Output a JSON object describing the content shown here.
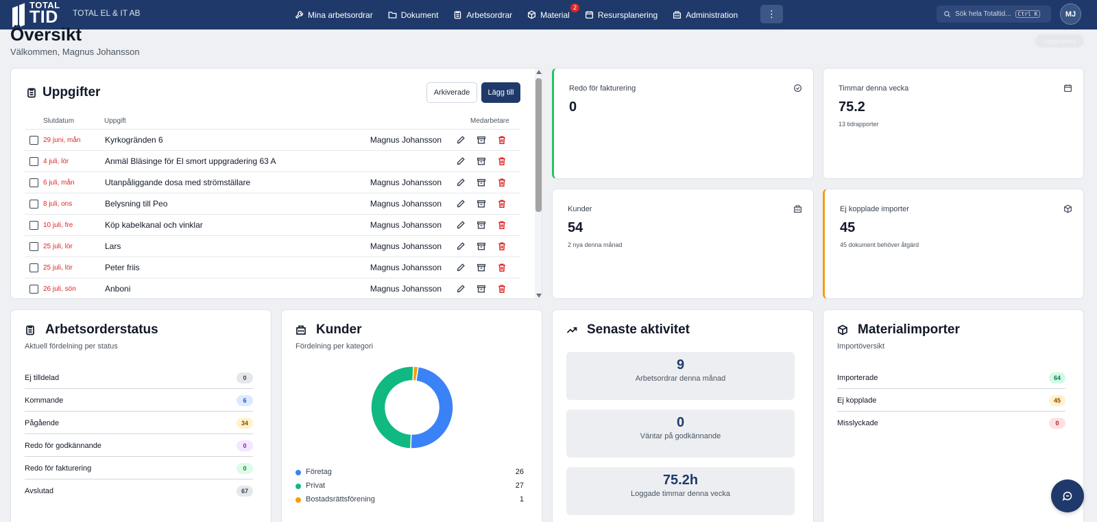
{
  "brand": {
    "logo_top": "TOTAL",
    "logo_bottom": "TID",
    "company": "TOTAL EL & IT AB"
  },
  "nav": {
    "items": [
      {
        "label": "Mina arbetsordrar",
        "icon": "wrench-icon"
      },
      {
        "label": "Dokument",
        "icon": "folder-icon"
      },
      {
        "label": "Arbetsordrar",
        "icon": "clipboard-icon"
      },
      {
        "label": "Material",
        "icon": "box-icon",
        "badge": "2"
      },
      {
        "label": "Resursplanering",
        "icon": "calendar-icon"
      },
      {
        "label": "Administration",
        "icon": "building-icon"
      }
    ],
    "more": "⋮"
  },
  "search": {
    "placeholder": "Sök hela Totaltid...",
    "shortcut": "Ctrl K"
  },
  "user": {
    "initials": "MJ"
  },
  "header": {
    "title": "Översikt",
    "welcome": "Välkommen, Magnus Johansson",
    "pill": "Uppgradera"
  },
  "tasks": {
    "title": "Uppgifter",
    "archived_label": "Arkiverade",
    "add_label": "Lägg till",
    "columns": {
      "date": "Slutdatum",
      "task": "Uppgift",
      "employee": "Medarbetare"
    },
    "rows": [
      {
        "date": "29 juni, mån",
        "task": "Kyrkogränden 6",
        "employee": "Magnus Johansson"
      },
      {
        "date": "4 juli, lör",
        "task": "Anmäl Bläsinge för El smort uppgradering 63 A",
        "employee": ""
      },
      {
        "date": "6 juli, mån",
        "task": "Utanpåliggande dosa med strömställare",
        "employee": "Magnus Johansson"
      },
      {
        "date": "8 juli, ons",
        "task": "Belysning till Peo",
        "employee": "Magnus Johansson"
      },
      {
        "date": "10 juli, fre",
        "task": "Köp kabelkanal och vinklar",
        "employee": "Magnus Johansson"
      },
      {
        "date": "25 juli, lör",
        "task": "Lars",
        "employee": "Magnus Johansson"
      },
      {
        "date": "25 juli, lör",
        "task": "Peter friis",
        "employee": "Magnus Johansson"
      },
      {
        "date": "26 juli, sön",
        "task": "Anboni",
        "employee": "Magnus Johansson"
      }
    ]
  },
  "stats": {
    "invoice": {
      "label": "Redo för fakturering",
      "value": "0",
      "sub": "",
      "accent": "#22c55e"
    },
    "hours": {
      "label": "Timmar denna vecka",
      "value": "75.2",
      "sub": "13 tidrapporter"
    },
    "customers": {
      "label": "Kunder",
      "value": "54",
      "sub": "2 nya denna månad"
    },
    "imports": {
      "label": "Ej kopplade importer",
      "value": "45",
      "sub": "45 dokument behöver åtgärd",
      "accent": "#f59e0b"
    }
  },
  "wo_status": {
    "title": "Arbetsorderstatus",
    "subtitle": "Aktuell fördelning per status",
    "rows": [
      {
        "label": "Ej tilldelad",
        "value": "0",
        "bg": "#e5e7eb",
        "fg": "#374151"
      },
      {
        "label": "Kommande",
        "value": "6",
        "bg": "#dbeafe",
        "fg": "#1d4ed8"
      },
      {
        "label": "Pågående",
        "value": "34",
        "bg": "#fef3c7",
        "fg": "#92400e"
      },
      {
        "label": "Redo för godkännande",
        "value": "0",
        "bg": "#f3e8ff",
        "fg": "#7e22ce"
      },
      {
        "label": "Redo för fakturering",
        "value": "0",
        "bg": "#dcfce7",
        "fg": "#15803d"
      },
      {
        "label": "Avslutad",
        "value": "67",
        "bg": "#e5e7eb",
        "fg": "#374151"
      }
    ]
  },
  "customers_card": {
    "title": "Kunder",
    "subtitle": "Fördelning per kategori",
    "chart_data": {
      "type": "pie",
      "categories": [
        "Företag",
        "Privat",
        "Bostadsrättsförening"
      ],
      "values": [
        26,
        27,
        1
      ],
      "colors": [
        "#3b82f6",
        "#10b981",
        "#f59e0b"
      ]
    }
  },
  "activity": {
    "title": "Senaste aktivitet",
    "items": [
      {
        "value": "9",
        "label": "Arbetsordrar denna månad"
      },
      {
        "value": "0",
        "label": "Väntar på godkännande"
      },
      {
        "value": "75.2h",
        "label": "Loggade timmar denna vecka"
      }
    ]
  },
  "material": {
    "title": "Materialimporter",
    "subtitle": "Importöversikt",
    "rows": [
      {
        "label": "Importerade",
        "value": "64",
        "bg": "#d1fae5",
        "fg": "#047857"
      },
      {
        "label": "Ej kopplade",
        "value": "45",
        "bg": "#fef3c7",
        "fg": "#92400e"
      },
      {
        "label": "Misslyckade",
        "value": "0",
        "bg": "#fee2e2",
        "fg": "#b91c1c"
      }
    ]
  }
}
